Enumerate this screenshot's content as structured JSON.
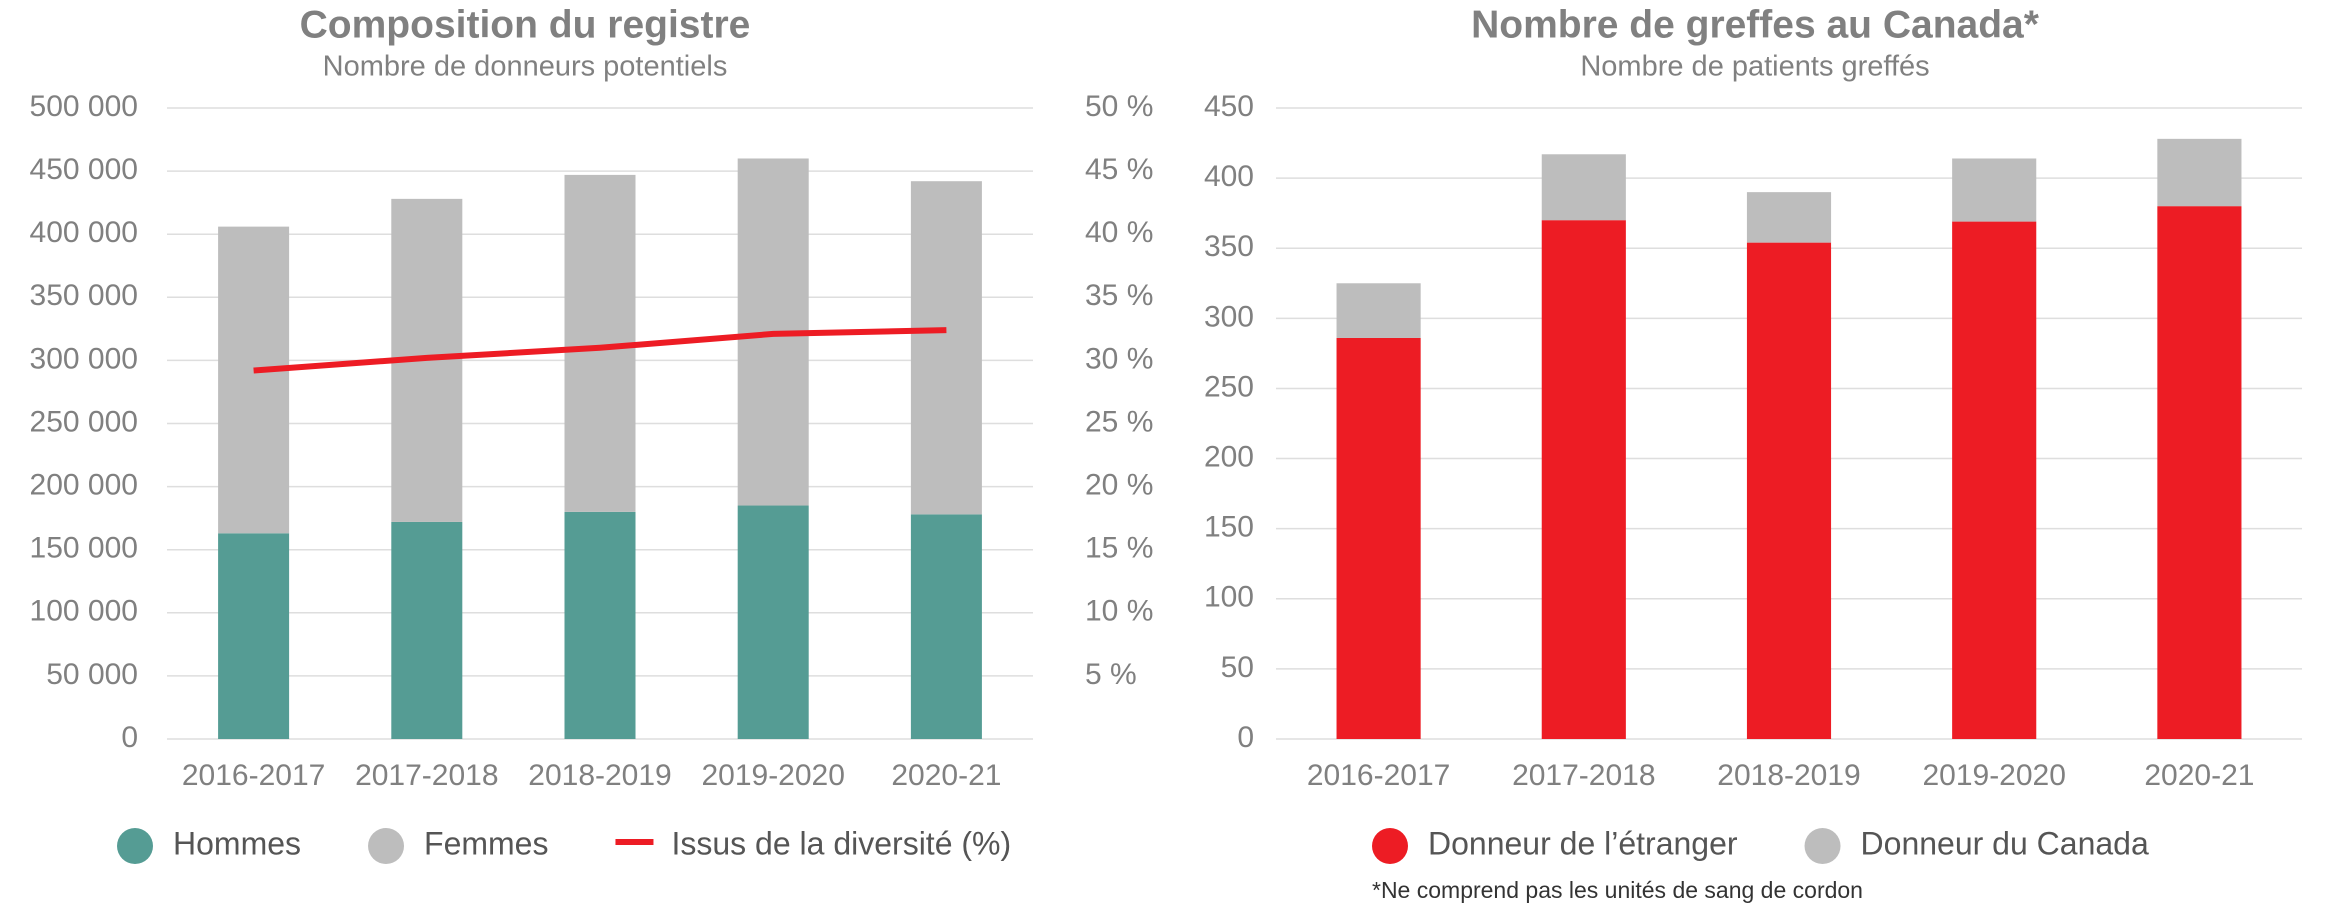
{
  "chart_data": [
    {
      "type": "bar",
      "stacked": true,
      "title": "Composition du registre",
      "subtitle": "Nombre de donneurs potentiels",
      "categories": [
        "2016-2017",
        "2017-2018",
        "2018-2019",
        "2019-2020",
        "2020-21"
      ],
      "series": [
        {
          "name": "Hommes",
          "color": "#559c94",
          "values": [
            163000,
            172000,
            180000,
            185000,
            178000
          ]
        },
        {
          "name": "Femmes",
          "color": "#bdbdbd",
          "values": [
            243000,
            256000,
            267000,
            275000,
            264000
          ]
        },
        {
          "name": "Issus de la diversité (%)",
          "color": "#ed1c24",
          "type": "line",
          "axis": "y2",
          "values": [
            29.2,
            30.2,
            31.0,
            32.1,
            32.4
          ]
        }
      ],
      "ylim": [
        0,
        500000
      ],
      "yticks": [
        0,
        {
          "value": 50000,
          "label": "50 000"
        },
        {
          "value": 100000,
          "label": "100 000"
        },
        {
          "value": 150000,
          "label": "150 000"
        },
        {
          "value": 200000,
          "label": "200 000"
        },
        {
          "value": 250000,
          "label": "250 000"
        },
        {
          "value": 300000,
          "label": "300 000"
        },
        {
          "value": 350000,
          "label": "350 000"
        },
        {
          "value": 400000,
          "label": "400 000"
        },
        {
          "value": 450000,
          "label": "450 000"
        },
        {
          "value": 500000,
          "label": "500 000"
        }
      ],
      "y2lim": [
        0,
        50
      ],
      "y2ticks": [
        {
          "value": 5,
          "label": "5 %"
        },
        {
          "value": 10,
          "label": "10 %"
        },
        {
          "value": 15,
          "label": "15 %"
        },
        {
          "value": 20,
          "label": "20 %"
        },
        {
          "value": 25,
          "label": "25 %"
        },
        {
          "value": 30,
          "label": "30 %"
        },
        {
          "value": 35,
          "label": "35 %"
        },
        {
          "value": 40,
          "label": "40 %"
        },
        {
          "value": 45,
          "label": "45 %"
        },
        {
          "value": 50,
          "label": "50 %"
        }
      ],
      "grid": true,
      "legend": "bottom"
    },
    {
      "type": "bar",
      "stacked": true,
      "title": "Nombre de greffes au Canada*",
      "subtitle": "Nombre de patients greffés",
      "categories": [
        "2016-2017",
        "2017-2018",
        "2018-2019",
        "2019-2020",
        "2020-21"
      ],
      "series": [
        {
          "name": "Donneur de l’étranger",
          "color": "#ed1c24",
          "values": [
            286,
            370,
            354,
            369,
            380
          ]
        },
        {
          "name": "Donneur du Canada",
          "color": "#bdbdbd",
          "values": [
            39,
            47,
            36,
            45,
            48
          ]
        }
      ],
      "ylim": [
        0,
        450
      ],
      "yticks": [
        0,
        50,
        100,
        150,
        200,
        250,
        300,
        350,
        400,
        450
      ],
      "grid": true,
      "legend": "bottom",
      "note": "*Ne comprend pas les unités de sang de cordon"
    }
  ]
}
